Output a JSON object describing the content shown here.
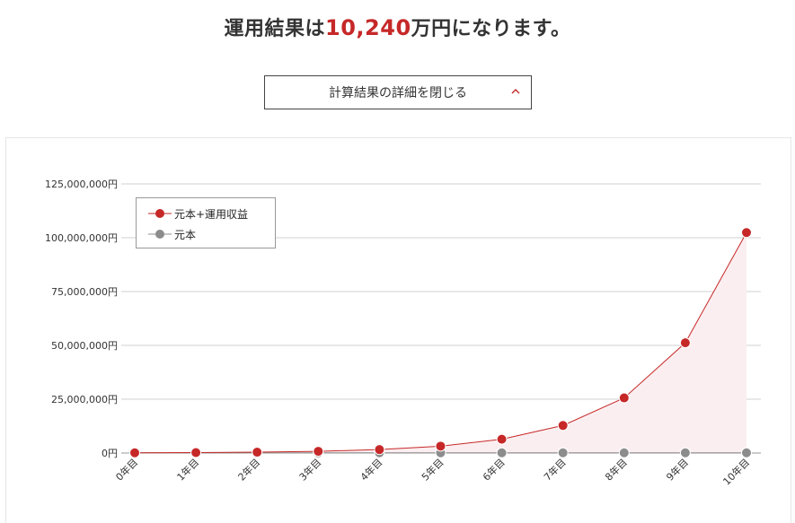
{
  "header": {
    "title_prefix": "運用結果は",
    "title_amount": "10,240",
    "title_suffix": "万円になります。"
  },
  "toggle": {
    "label": "計算結果の詳細を閉じる",
    "icon": "chevron-up-icon"
  },
  "colors": {
    "accent": "#c62828",
    "principal": "#8c8c8c",
    "area_fill": "#fbeef0"
  },
  "chart_data": {
    "type": "line",
    "categories": [
      "0年目",
      "1年目",
      "2年目",
      "3年目",
      "4年目",
      "5年目",
      "6年目",
      "7年目",
      "8年目",
      "9年目",
      "10年目"
    ],
    "series": [
      {
        "name": "元本+運用収益",
        "color": "#c62828",
        "values": [
          100000,
          200000,
          400000,
          800000,
          1600000,
          3200000,
          6400000,
          12800000,
          25600000,
          51200000,
          102400000
        ]
      },
      {
        "name": "元本",
        "color": "#8c8c8c",
        "values": [
          100000,
          100000,
          100000,
          100000,
          100000,
          100000,
          100000,
          100000,
          100000,
          100000,
          100000
        ]
      }
    ],
    "yticks": [
      "0円",
      "25,000,000円",
      "50,000,000円",
      "75,000,000円",
      "100,000,000円",
      "125,000,000円"
    ],
    "ylim": [
      0,
      125000000
    ],
    "grid": true,
    "legend_position": "top-left"
  }
}
